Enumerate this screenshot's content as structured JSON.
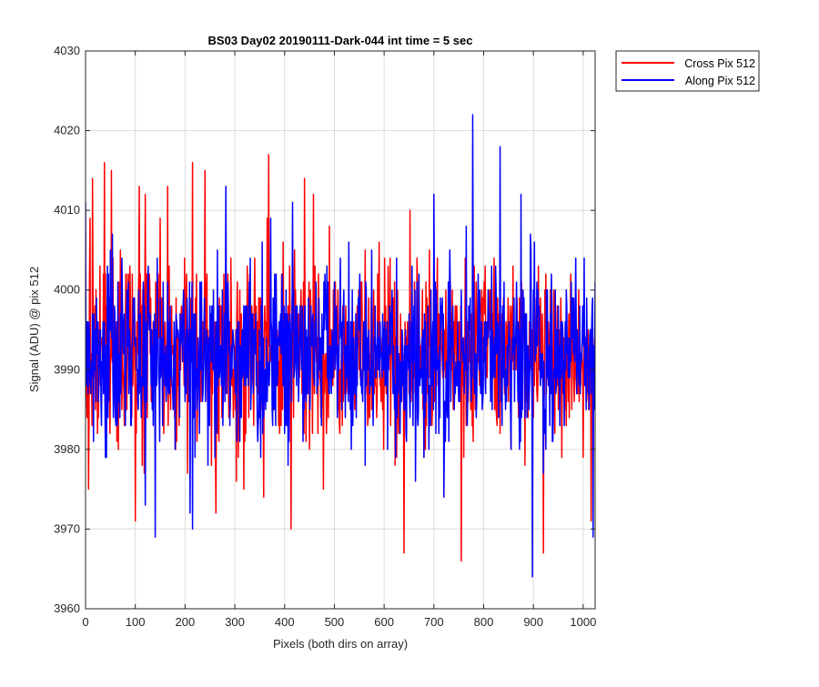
{
  "chart_data": {
    "type": "line",
    "title": "BS03 Day02 20190111-Dark-044 int time = 5 sec",
    "xlabel": "Pixels (both dirs on array)",
    "ylabel": "Signal (ADU) @ pix 512",
    "xlim": [
      0,
      1024
    ],
    "ylim": [
      3960,
      4030
    ],
    "xticks": [
      0,
      100,
      200,
      300,
      400,
      500,
      600,
      700,
      800,
      900,
      1000
    ],
    "yticks": [
      3960,
      3970,
      3980,
      3990,
      4000,
      4010,
      4020,
      4030
    ],
    "grid": true,
    "legend_position": "outside-top-right",
    "series": [
      {
        "name": "Cross Pix 512",
        "color": "#ff0000",
        "anchors": [
          [
            0,
            3993
          ],
          [
            3,
            3984
          ],
          [
            6,
            3975
          ],
          [
            9,
            4009
          ],
          [
            14,
            4014
          ],
          [
            22,
            3990
          ],
          [
            27,
            3995
          ],
          [
            38,
            4016
          ],
          [
            45,
            3988
          ],
          [
            52,
            4015
          ],
          [
            60,
            3995
          ],
          [
            70,
            4005
          ],
          [
            82,
            4002
          ],
          [
            90,
            4000
          ],
          [
            100,
            3971
          ],
          [
            108,
            4013
          ],
          [
            120,
            4012
          ],
          [
            131,
            3999
          ],
          [
            140,
            3980
          ],
          [
            150,
            4009
          ],
          [
            158,
            3986
          ],
          [
            165,
            4013
          ],
          [
            172,
            3990
          ],
          [
            181,
            3980
          ],
          [
            194,
            3995
          ],
          [
            205,
            3977
          ],
          [
            215,
            4016
          ],
          [
            224,
            3981
          ],
          [
            240,
            4015
          ],
          [
            253,
            3978
          ],
          [
            262,
            3972
          ],
          [
            280,
            3991
          ],
          [
            292,
            4004
          ],
          [
            303,
            3976
          ],
          [
            312,
            3990
          ],
          [
            318,
            3975
          ],
          [
            330,
            4002
          ],
          [
            335,
            3995
          ],
          [
            340,
            4004
          ],
          [
            350,
            3999
          ],
          [
            358,
            3974
          ],
          [
            365,
            4009
          ],
          [
            368,
            4017
          ],
          [
            380,
            3993
          ],
          [
            397,
            4006
          ],
          [
            405,
            3984
          ],
          [
            413,
            3970
          ],
          [
            420,
            4005
          ],
          [
            433,
            4000
          ],
          [
            440,
            4014
          ],
          [
            450,
            3980
          ],
          [
            458,
            4012
          ],
          [
            470,
            3989
          ],
          [
            478,
            3975
          ],
          [
            490,
            4008
          ],
          [
            500,
            3992
          ],
          [
            512,
            3990
          ],
          [
            525,
            3988
          ],
          [
            533,
            3990
          ],
          [
            545,
            3996
          ],
          [
            557,
            3987
          ],
          [
            570,
            3990
          ],
          [
            583,
            3988
          ],
          [
            595,
            3991
          ],
          [
            605,
            3993
          ],
          [
            612,
            4004
          ],
          [
            622,
            3978
          ],
          [
            628,
            3985
          ],
          [
            638,
            3992
          ],
          [
            640,
            3967
          ],
          [
            652,
            4010
          ],
          [
            660,
            3990
          ],
          [
            668,
            3985
          ],
          [
            680,
            3979
          ],
          [
            690,
            3993
          ],
          [
            700,
            4004
          ],
          [
            712,
            3988
          ],
          [
            722,
            3995
          ],
          [
            735,
            3997
          ],
          [
            745,
            3989
          ],
          [
            755,
            3966
          ],
          [
            763,
            4004
          ],
          [
            775,
            3994
          ],
          [
            790,
            3991
          ],
          [
            800,
            3998
          ],
          [
            812,
            4000
          ],
          [
            822,
            3985
          ],
          [
            832,
            3991
          ],
          [
            842,
            3987
          ],
          [
            850,
            3986
          ],
          [
            860,
            3990
          ],
          [
            875,
            3990
          ],
          [
            883,
            3978
          ],
          [
            893,
            3990
          ],
          [
            905,
            3996
          ],
          [
            914,
            3999
          ],
          [
            920,
            3967
          ],
          [
            935,
            3990
          ],
          [
            947,
            3988
          ],
          [
            958,
            3989
          ],
          [
            965,
            3992
          ],
          [
            975,
            4002
          ],
          [
            983,
            3989
          ],
          [
            991,
            4000
          ],
          [
            1000,
            3979
          ],
          [
            1005,
            3994
          ],
          [
            1012,
            3991
          ],
          [
            1016,
            3971
          ],
          [
            1019,
            3995
          ],
          [
            1022,
            3992
          ],
          [
            1024,
            3993
          ]
        ]
      },
      {
        "name": "Along Pix 512",
        "color": "#0000ff",
        "anchors": [
          [
            0,
            4011
          ],
          [
            5,
            3987
          ],
          [
            12,
            3991
          ],
          [
            24,
            3994
          ],
          [
            32,
            3983
          ],
          [
            40,
            3979
          ],
          [
            50,
            4005
          ],
          [
            60,
            3984
          ],
          [
            72,
            3999
          ],
          [
            90,
            3990
          ],
          [
            105,
            3986
          ],
          [
            120,
            3973
          ],
          [
            130,
            3997
          ],
          [
            140,
            3969
          ],
          [
            155,
            3983
          ],
          [
            165,
            4001
          ],
          [
            180,
            3980
          ],
          [
            195,
            3991
          ],
          [
            210,
            3972
          ],
          [
            215,
            3970
          ],
          [
            230,
            4001
          ],
          [
            242,
            3990
          ],
          [
            250,
            3998
          ],
          [
            260,
            3979
          ],
          [
            270,
            3990
          ],
          [
            282,
            4013
          ],
          [
            290,
            3983
          ],
          [
            300,
            3991
          ],
          [
            310,
            3981
          ],
          [
            320,
            3988
          ],
          [
            331,
            4004
          ],
          [
            340,
            3995
          ],
          [
            352,
            3979
          ],
          [
            363,
            3994
          ],
          [
            372,
            4009
          ],
          [
            382,
            3983
          ],
          [
            390,
            3993
          ],
          [
            398,
            3991
          ],
          [
            407,
            3978
          ],
          [
            416,
            4011
          ],
          [
            430,
            3994
          ],
          [
            447,
            3987
          ],
          [
            458,
            3989
          ],
          [
            470,
            3992
          ],
          [
            480,
            3995
          ],
          [
            495,
            3992
          ],
          [
            508,
            3993
          ],
          [
            520,
            3991
          ],
          [
            532,
            3985
          ],
          [
            544,
            3984
          ],
          [
            556,
            3988
          ],
          [
            568,
            3992
          ],
          [
            580,
            3994
          ],
          [
            592,
            3996
          ],
          [
            604,
            3995
          ],
          [
            620,
            3989
          ],
          [
            630,
            3991
          ],
          [
            642,
            3985
          ],
          [
            652,
            3984
          ],
          [
            670,
            4002
          ],
          [
            680,
            3979
          ],
          [
            700,
            4012
          ],
          [
            712,
            3984
          ],
          [
            720,
            3974
          ],
          [
            732,
            4005
          ],
          [
            742,
            3990
          ],
          [
            753,
            3990
          ],
          [
            765,
            4008
          ],
          [
            778,
            4022
          ],
          [
            790,
            3993
          ],
          [
            803,
            3989
          ],
          [
            813,
            3994
          ],
          [
            825,
            4000
          ],
          [
            833,
            4018
          ],
          [
            843,
            3988
          ],
          [
            855,
            3980
          ],
          [
            865,
            3996
          ],
          [
            875,
            4012
          ],
          [
            883,
            3984
          ],
          [
            895,
            4005
          ],
          [
            898,
            3964
          ],
          [
            912,
            3997
          ],
          [
            925,
            3980
          ],
          [
            937,
            3999
          ],
          [
            948,
            3990
          ],
          [
            955,
            3996
          ],
          [
            965,
            3990
          ],
          [
            977,
            3995
          ],
          [
            985,
            4004
          ],
          [
            995,
            3992
          ],
          [
            1005,
            3994
          ],
          [
            1012,
            3985
          ],
          [
            1018,
            3998
          ],
          [
            1020,
            3969
          ],
          [
            1024,
            4001
          ]
        ]
      }
    ]
  }
}
